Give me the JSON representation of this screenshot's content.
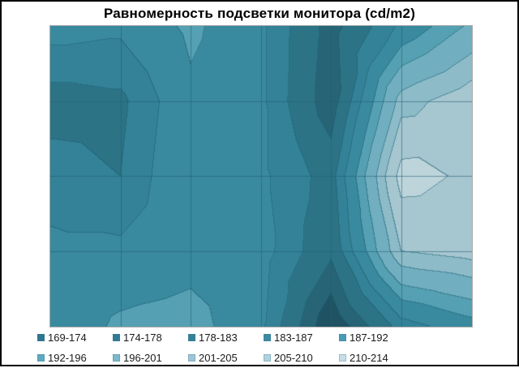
{
  "window": {
    "background": "#ffffff",
    "frame_border_color": "#000000",
    "plot_border_color": "#ababab"
  },
  "chart_data": {
    "type": "heatmap",
    "subtype": "contour-surface-top-view",
    "title": "Равномерность подсветки монитора (cd/m2)",
    "unit": "cd/m2",
    "xlabel": "",
    "ylabel": "",
    "axis_tick_labels_visible": false,
    "gridlines": true,
    "gridline_color": "#1f5d6f",
    "contour_line_color": "#1d6075",
    "legend_position": "bottom",
    "legend_rows": 2,
    "legend_items_per_row": 5,
    "grid": {
      "rows": 5,
      "cols": 7,
      "values": [
        [
          189,
          188,
          193,
          188,
          176,
          188,
          197
        ],
        [
          181,
          182,
          191,
          188,
          175,
          203,
          208
        ],
        [
          185,
          183,
          192,
          188,
          181,
          212,
          209
        ],
        [
          188,
          188,
          190,
          189,
          179,
          205,
          207
        ],
        [
          188,
          193,
          194,
          188,
          170,
          185,
          190
        ]
      ]
    },
    "bands": [
      {
        "label": "169-174",
        "min": 169,
        "max": 174,
        "color": "#1f5363",
        "legend_color": "#2b7690"
      },
      {
        "label": "174-178",
        "min": 174,
        "max": 178,
        "color": "#266476",
        "legend_color": "#2e7c96"
      },
      {
        "label": "178-183",
        "min": 178,
        "max": 183,
        "color": "#2d7386",
        "legend_color": "#33829c"
      },
      {
        "label": "183-187",
        "min": 183,
        "max": 187,
        "color": "#348297",
        "legend_color": "#3a8ba4"
      },
      {
        "label": "187-192",
        "min": 187,
        "max": 192,
        "color": "#3a8a9f",
        "legend_color": "#459cb6"
      },
      {
        "label": "192-196",
        "min": 192,
        "max": 196,
        "color": "#55a0b2",
        "legend_color": "#5caac2"
      },
      {
        "label": "196-201",
        "min": 196,
        "max": 201,
        "color": "#71afc0",
        "legend_color": "#7cb9cd"
      },
      {
        "label": "201-205",
        "min": 201,
        "max": 205,
        "color": "#8dbbc8",
        "legend_color": "#9cc6d8"
      },
      {
        "label": "205-210",
        "min": 205,
        "max": 210,
        "color": "#a6c6d0",
        "legend_color": "#afd3e1"
      },
      {
        "label": "210-214",
        "min": 210,
        "max": 214,
        "color": "#bdd4db",
        "legend_color": "#c5dee9"
      }
    ]
  }
}
